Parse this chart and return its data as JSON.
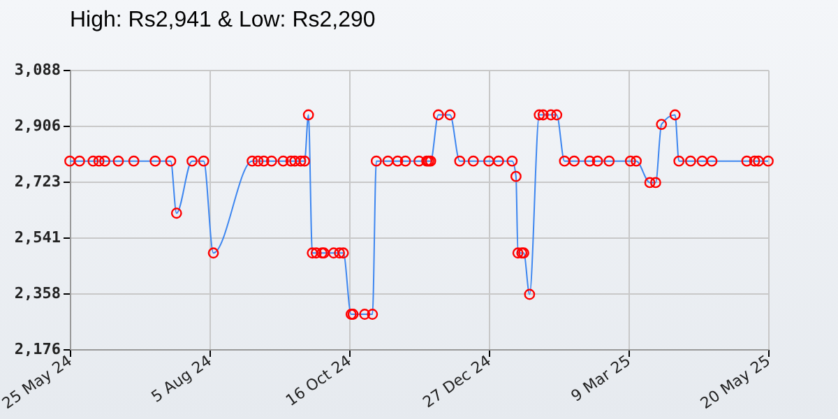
{
  "chart_data": {
    "type": "line",
    "title": "High: Rs2,941 & Low: Rs2,290",
    "x": [
      "2024-05-25",
      "2024-05-30",
      "2024-06-06",
      "2024-06-09",
      "2024-06-12",
      "2024-06-19",
      "2024-06-27",
      "2024-07-08",
      "2024-07-16",
      "2024-07-19",
      "2024-07-27",
      "2024-08-02",
      "2024-08-07",
      "2024-08-27",
      "2024-08-30",
      "2024-09-02",
      "2024-09-06",
      "2024-09-12",
      "2024-09-16",
      "2024-09-18",
      "2024-09-21",
      "2024-09-23",
      "2024-09-25",
      "2024-09-27",
      "2024-09-29",
      "2024-10-02",
      "2024-10-03",
      "2024-10-08",
      "2024-10-11",
      "2024-10-13",
      "2024-10-17",
      "2024-10-18",
      "2024-10-24",
      "2024-10-28",
      "2024-10-30",
      "2024-11-05",
      "2024-11-10",
      "2024-11-14",
      "2024-11-21",
      "2024-11-25",
      "2024-11-26",
      "2024-11-27",
      "2024-12-01",
      "2024-12-07",
      "2024-12-12",
      "2024-12-19",
      "2024-12-27",
      "2025-01-01",
      "2025-01-08",
      "2025-01-10",
      "2025-01-11",
      "2025-01-13",
      "2025-01-14",
      "2025-01-17",
      "2025-01-22",
      "2025-01-24",
      "2025-01-28",
      "2025-01-31",
      "2025-02-04",
      "2025-02-09",
      "2025-02-17",
      "2025-02-21",
      "2025-02-27",
      "2025-03-10",
      "2025-03-13",
      "2025-03-20",
      "2025-03-23",
      "2025-03-26",
      "2025-04-02",
      "2025-04-04",
      "2025-04-10",
      "2025-04-16",
      "2025-04-21",
      "2025-05-09",
      "2025-05-13",
      "2025-05-15",
      "2025-05-20"
    ],
    "series": [
      {
        "color": "#3d86f0",
        "values": [
          2790,
          2790,
          2790,
          2790,
          2790,
          2790,
          2790,
          2790,
          2790,
          2620,
          2790,
          2790,
          2490,
          2790,
          2790,
          2790,
          2790,
          2790,
          2790,
          2790,
          2790,
          2790,
          2941,
          2490,
          2490,
          2490,
          2490,
          2490,
          2490,
          2490,
          2290,
          2290,
          2290,
          2290,
          2790,
          2790,
          2790,
          2790,
          2790,
          2790,
          2790,
          2790,
          2941,
          2941,
          2790,
          2790,
          2790,
          2790,
          2790,
          2740,
          2490,
          2490,
          2490,
          2355,
          2941,
          2941,
          2941,
          2941,
          2790,
          2790,
          2790,
          2790,
          2790,
          2790,
          2790,
          2720,
          2720,
          2910,
          2941,
          2790,
          2790,
          2790,
          2790,
          2790,
          2790,
          2790,
          2790
        ]
      }
    ],
    "xlim": [
      "2024-05-25",
      "2025-05-20"
    ],
    "xticks": [
      {
        "value": "2024-05-25",
        "label": "25 May 24"
      },
      {
        "value": "2024-08-05",
        "label": "5 Aug 24"
      },
      {
        "value": "2024-10-16",
        "label": "16 Oct 24"
      },
      {
        "value": "2024-12-27",
        "label": "27 Dec 24"
      },
      {
        "value": "2025-03-09",
        "label": "9 Mar 25"
      },
      {
        "value": "2025-05-20",
        "label": "20 May 25"
      }
    ],
    "ylim": [
      2176,
      3088
    ],
    "yticks": [
      {
        "value": 2176,
        "label": "2,176"
      },
      {
        "value": 2358,
        "label": "2,358"
      },
      {
        "value": 2541,
        "label": "2,541"
      },
      {
        "value": 2723,
        "label": "2,723"
      },
      {
        "value": 2906,
        "label": "2,906"
      },
      {
        "value": 3088,
        "label": "3,088"
      }
    ],
    "grid": true,
    "marker": "circle",
    "line_style": "solid"
  }
}
